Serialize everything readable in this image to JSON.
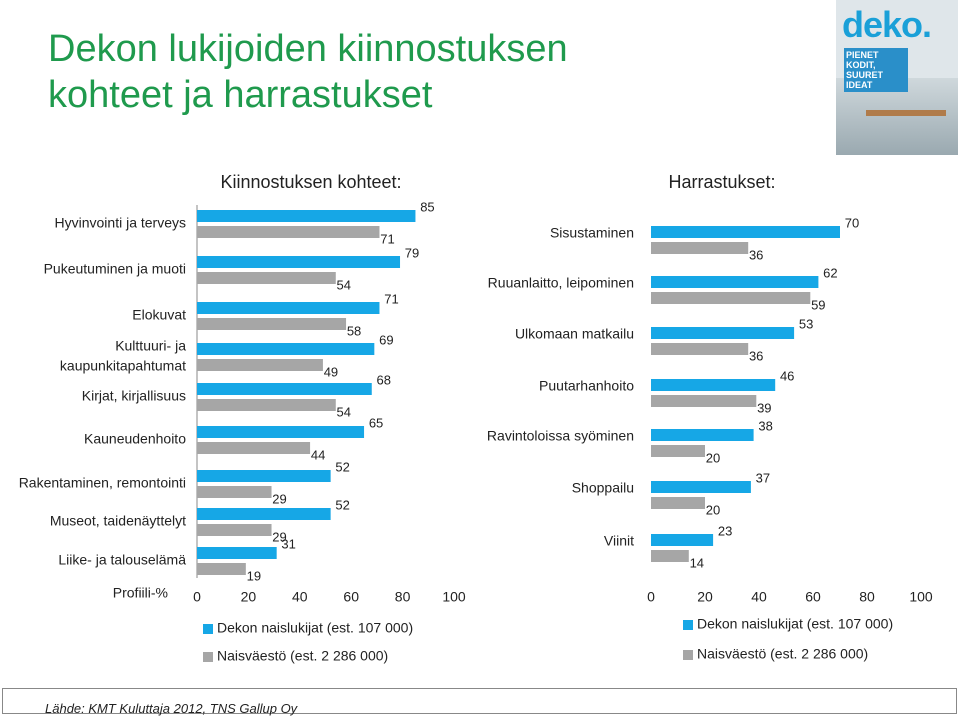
{
  "page": {
    "title_line1": "Dekon lukijoiden kiinnostuksen",
    "title_line2": "kohteet ja harrastukset",
    "source": "Lähde: KMT Kuluttaja 2012, TNS Gallup Oy",
    "cover": {
      "logo": "deko.",
      "headline": "PIENET KODIT, SUURET IDEAT"
    }
  },
  "colors": {
    "title": "#1f9a4d",
    "series1": "#16a7e6",
    "series2": "#a6a6a6"
  },
  "chart_data": [
    {
      "type": "bar",
      "orientation": "horizontal",
      "title": "Kiinnostuksen kohteet:",
      "xlabel": "Profiili-%",
      "xlim": [
        0,
        100
      ],
      "xticks": [
        "0",
        "20",
        "40",
        "60",
        "80",
        "100"
      ],
      "categories": [
        "Hyvinvointi ja terveys",
        "Pukeutuminen ja muoti",
        "Elokuvat",
        "Kulttuuri- ja kaupunkitapahtumat",
        "Kirjat, kirjallisuus",
        "Kauneudenhoito",
        "Rakentaminen, remontointi",
        "Museot, taidenäyttelyt",
        "Liike- ja talouselämä"
      ],
      "series": [
        {
          "name": "Dekon naislukijat (est. 107 000)",
          "values": [
            85,
            79,
            71,
            69,
            68,
            65,
            52,
            52,
            31
          ]
        },
        {
          "name": "Naisväestö (est. 2 286 000)",
          "values": [
            71,
            54,
            58,
            49,
            54,
            44,
            29,
            29,
            19
          ]
        }
      ]
    },
    {
      "type": "bar",
      "orientation": "horizontal",
      "title": "Harrastukset:",
      "xlim": [
        0,
        100
      ],
      "xticks": [
        "0",
        "20",
        "40",
        "60",
        "80",
        "100"
      ],
      "categories": [
        "Sisustaminen",
        "Ruuanlaitto, leipominen",
        "Ulkomaan matkailu",
        "Puutarhanhoito",
        "Ravintoloissa syöminen",
        "Shoppailu",
        "Viinit"
      ],
      "series": [
        {
          "name": "Dekon naislukijat (est. 107 000)",
          "values": [
            70,
            62,
            53,
            46,
            38,
            37,
            23
          ]
        },
        {
          "name": "Naisväestö (est. 2 286 000)",
          "values": [
            36,
            59,
            36,
            39,
            20,
            20,
            14
          ]
        }
      ]
    }
  ]
}
